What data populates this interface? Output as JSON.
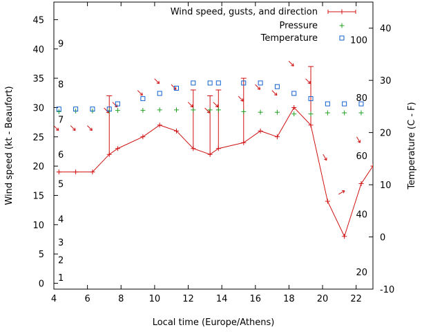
{
  "chart_data": {
    "type": "line",
    "xlabel": "Local time (Europe/Athens)",
    "ylabel": "Wind speed (kt - Beaufort)",
    "y2label": "Temperature (C - F)",
    "xlim": [
      4,
      23
    ],
    "ylim": [
      -1,
      48
    ],
    "y2lim": [
      -10,
      45
    ],
    "xticks": [
      4,
      6,
      8,
      10,
      12,
      14,
      16,
      18,
      20,
      22
    ],
    "yticks": [
      0,
      5,
      10,
      15,
      20,
      25,
      30,
      35,
      40,
      45
    ],
    "y2ticks": [
      -10,
      0,
      10,
      20,
      30,
      40
    ],
    "beaufort_labels": [
      {
        "label": "1",
        "kt": 1
      },
      {
        "label": "2",
        "kt": 4
      },
      {
        "label": "3",
        "kt": 7
      },
      {
        "label": "4",
        "kt": 11
      },
      {
        "label": "5",
        "kt": 17
      },
      {
        "label": "6",
        "kt": 22
      },
      {
        "label": "7",
        "kt": 28
      },
      {
        "label": "8",
        "kt": 34
      },
      {
        "label": "9",
        "kt": 41
      }
    ],
    "fahrenheit_labels": [
      {
        "label": "20",
        "celsius": -6.7
      },
      {
        "label": "40",
        "celsius": 4.4
      },
      {
        "label": "60",
        "celsius": 15.6
      },
      {
        "label": "80",
        "celsius": 26.7
      },
      {
        "label": "100",
        "celsius": 37.8
      }
    ],
    "legend_position": "top-right",
    "series": [
      {
        "name": "Wind speed, gusts, and direction",
        "color": "#d01010",
        "x": [
          4.3,
          5.3,
          6.3,
          7.3,
          7.8,
          9.3,
          10.3,
          11.3,
          12.3,
          13.3,
          13.8,
          15.3,
          16.3,
          17.3,
          18.3,
          19.3,
          20.3,
          21.3,
          22.3,
          23.0
        ],
        "values": [
          19,
          19,
          19,
          22,
          23,
          25,
          27,
          26,
          23,
          22,
          23,
          24,
          26,
          25,
          30,
          27,
          14,
          8,
          17,
          20
        ],
        "gusts": [
          null,
          null,
          null,
          32,
          null,
          null,
          null,
          null,
          33,
          32,
          33,
          35,
          null,
          null,
          null,
          37,
          null,
          null,
          null,
          null
        ],
        "direction_deg": [
          315,
          315,
          315,
          315,
          315,
          315,
          315,
          315,
          315,
          315,
          315,
          315,
          315,
          315,
          315,
          315,
          330,
          240,
          330,
          null
        ]
      },
      {
        "name": "Pressure",
        "color": "#20a020",
        "x": [
          4.3,
          5.3,
          6.3,
          7.3,
          7.8,
          9.3,
          10.3,
          11.3,
          12.3,
          13.3,
          13.8,
          15.3,
          16.3,
          17.3,
          18.3,
          19.3,
          20.3,
          21.3,
          22.3
        ],
        "values": [
          29.3,
          29.4,
          29.4,
          29.4,
          29.5,
          29.5,
          29.6,
          29.6,
          29.6,
          29.6,
          29.6,
          29.3,
          29.2,
          29.2,
          28.9,
          28.9,
          29.1,
          29.1,
          29.1
        ]
      },
      {
        "name": "Temperature",
        "color": "#1060d0",
        "x": [
          4.3,
          5.3,
          6.3,
          7.3,
          7.8,
          9.3,
          10.3,
          11.3,
          12.3,
          13.3,
          13.8,
          15.3,
          16.3,
          17.3,
          18.3,
          19.3,
          20.3,
          21.3,
          22.3
        ],
        "values": [
          24.5,
          24.5,
          24.5,
          24.5,
          25.5,
          26.5,
          27.5,
          28.5,
          29.5,
          29.5,
          29.5,
          29.5,
          29.5,
          28.8,
          27.5,
          26.5,
          25.5,
          25.5,
          25.5
        ]
      }
    ]
  }
}
